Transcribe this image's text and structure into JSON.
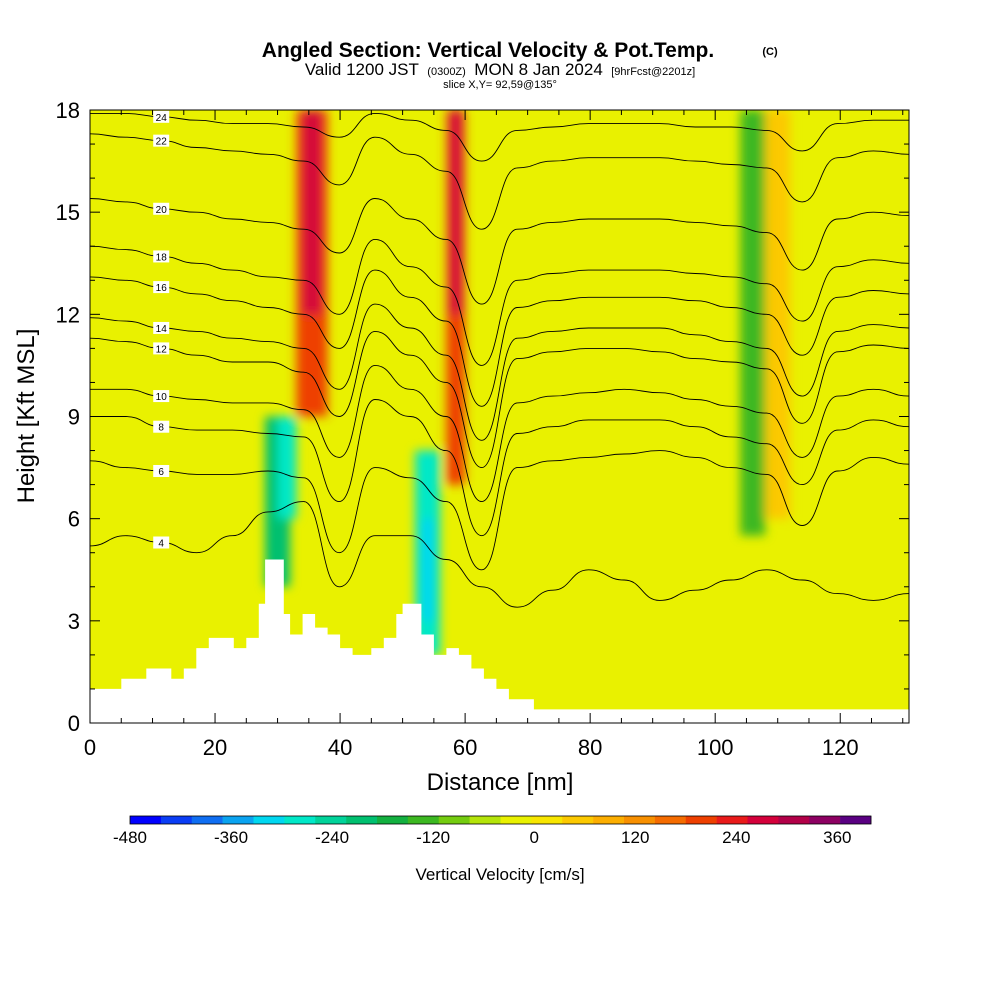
{
  "title": "Angled Section: Vertical Velocity & Pot.Temp.",
  "title_tag": "(C)",
  "subtitle_pre": "Valid 1200 JST",
  "subtitle_small1": "(0300Z)",
  "subtitle_mid": "MON 8 Jan 2024",
  "subtitle_small2": "[9hrFcst@2201z]",
  "slice_text": "slice X,Y= 92,59@135°",
  "chart_data": {
    "type": "heatmap",
    "title": "Angled Section: Vertical Velocity & Pot.Temp. (C)",
    "xlabel": "Distance [nm]",
    "ylabel": "Height [Kft MSL]",
    "xlim": [
      0,
      131
    ],
    "ylim": [
      0,
      18
    ],
    "x_ticks": [
      0,
      20,
      40,
      60,
      80,
      100,
      120
    ],
    "y_ticks": [
      0,
      3,
      6,
      9,
      12,
      15,
      18
    ],
    "colorbar": {
      "label": "Vertical Velocity [cm/s]",
      "min": -480,
      "max": 400,
      "step": 40,
      "tick_values": [
        -480,
        -360,
        -240,
        -120,
        0,
        120,
        240,
        360
      ],
      "colors": [
        "#0000ff",
        "#0a3df5",
        "#0f6ef2",
        "#0aa3f0",
        "#00d7f0",
        "#00e8c8",
        "#00d39a",
        "#00c070",
        "#13b040",
        "#3cb821",
        "#74cc10",
        "#b4e40a",
        "#e9f100",
        "#f8e600",
        "#fcc900",
        "#fcae00",
        "#f89000",
        "#f56c00",
        "#ee4000",
        "#e91a1a",
        "#d4003b",
        "#b20048",
        "#8d0062",
        "#5a0082"
      ]
    },
    "velocity_cells": [
      {
        "x": [
          28,
          32
        ],
        "y": [
          4,
          9
        ],
        "value": -200
      },
      {
        "x": [
          30,
          33
        ],
        "y": [
          6,
          9
        ],
        "value": -280
      },
      {
        "x": [
          33,
          38
        ],
        "y": [
          9,
          18
        ],
        "value": 240
      },
      {
        "x": [
          34,
          37
        ],
        "y": [
          12,
          18
        ],
        "value": 320
      },
      {
        "x": [
          52,
          56
        ],
        "y": [
          2,
          8
        ],
        "value": -250
      },
      {
        "x": [
          53,
          55
        ],
        "y": [
          3,
          6
        ],
        "value": -320
      },
      {
        "x": [
          57,
          60
        ],
        "y": [
          7,
          18
        ],
        "value": 240
      },
      {
        "x": [
          57.5,
          59.5
        ],
        "y": [
          12,
          18
        ],
        "value": 320
      },
      {
        "x": [
          104,
          108
        ],
        "y": [
          5.5,
          18
        ],
        "value": -120
      },
      {
        "x": [
          108,
          112
        ],
        "y": [
          6,
          18
        ],
        "value": 100
      }
    ],
    "terrain": [
      [
        0,
        1
      ],
      [
        5,
        1
      ],
      [
        5,
        1.3
      ],
      [
        9,
        1.3
      ],
      [
        9,
        1.6
      ],
      [
        13,
        1.6
      ],
      [
        13,
        1.3
      ],
      [
        15,
        1.3
      ],
      [
        15,
        1.6
      ],
      [
        17,
        1.6
      ],
      [
        17,
        2.2
      ],
      [
        19,
        2.2
      ],
      [
        19,
        2.5
      ],
      [
        23,
        2.5
      ],
      [
        23,
        2.2
      ],
      [
        25,
        2.2
      ],
      [
        25,
        2.5
      ],
      [
        27,
        2.5
      ],
      [
        27,
        3.5
      ],
      [
        28,
        3.5
      ],
      [
        28,
        4.8
      ],
      [
        31,
        4.8
      ],
      [
        31,
        3.2
      ],
      [
        32,
        3.2
      ],
      [
        32,
        2.6
      ],
      [
        34,
        2.6
      ],
      [
        34,
        3.2
      ],
      [
        36,
        3.2
      ],
      [
        36,
        2.8
      ],
      [
        38,
        2.8
      ],
      [
        38,
        2.6
      ],
      [
        40,
        2.6
      ],
      [
        40,
        2.2
      ],
      [
        42,
        2.2
      ],
      [
        42,
        2
      ],
      [
        45,
        2
      ],
      [
        45,
        2.2
      ],
      [
        47,
        2.2
      ],
      [
        47,
        2.5
      ],
      [
        49,
        2.5
      ],
      [
        49,
        3.2
      ],
      [
        50,
        3.2
      ],
      [
        50,
        3.5
      ],
      [
        53,
        3.5
      ],
      [
        53,
        2.6
      ],
      [
        55,
        2.6
      ],
      [
        55,
        2
      ],
      [
        57,
        2
      ],
      [
        57,
        2.2
      ],
      [
        59,
        2.2
      ],
      [
        59,
        2
      ],
      [
        61,
        2
      ],
      [
        61,
        1.6
      ],
      [
        63,
        1.6
      ],
      [
        63,
        1.3
      ],
      [
        65,
        1.3
      ],
      [
        65,
        1
      ],
      [
        67,
        1
      ],
      [
        67,
        0.7
      ],
      [
        71,
        0.7
      ],
      [
        71,
        0.4
      ],
      [
        131,
        0.4
      ]
    ],
    "theta_contours": [
      {
        "level": 4,
        "y": [
          5.2,
          5.5,
          5.3,
          5.0,
          5.5,
          6.2,
          6.5,
          4.0,
          5.5,
          5.5,
          4.8,
          4.0,
          3.4,
          3.9,
          4.5,
          4.2,
          3.6,
          3.9,
          4.2,
          4.5,
          4.2,
          3.8,
          3.6,
          3.8
        ]
      },
      {
        "level": 6,
        "y": [
          7.7,
          7.5,
          7.4,
          7.3,
          7.3,
          7.4,
          7.2,
          5.0,
          7.5,
          7.2,
          6.5,
          4.5,
          7.5,
          7.7,
          7.8,
          7.9,
          8.0,
          7.8,
          7.5,
          7.3,
          5.8,
          7.4,
          7.8,
          7.6
        ]
      },
      {
        "level": 8,
        "y": [
          9.0,
          9.0,
          8.7,
          8.6,
          8.6,
          8.5,
          8.4,
          6.5,
          9.5,
          9.0,
          8.0,
          5.5,
          8.5,
          8.7,
          8.9,
          8.9,
          8.9,
          8.7,
          8.4,
          8.2,
          7.0,
          8.6,
          8.9,
          8.7
        ]
      },
      {
        "level": 10,
        "y": [
          9.8,
          9.8,
          9.6,
          9.5,
          9.4,
          9.4,
          9.2,
          7.8,
          10.5,
          9.8,
          9.0,
          6.5,
          9.4,
          9.6,
          9.7,
          9.8,
          9.7,
          9.5,
          9.3,
          9.1,
          7.8,
          9.6,
          9.8,
          9.6
        ]
      },
      {
        "level": 12,
        "y": [
          11.3,
          11.2,
          11.0,
          10.8,
          10.6,
          10.6,
          10.3,
          9.0,
          11.5,
          10.8,
          10.0,
          7.5,
          10.7,
          10.9,
          11.0,
          11.0,
          10.9,
          10.7,
          10.6,
          10.4,
          8.8,
          10.9,
          11.1,
          11.0
        ]
      },
      {
        "level": 14,
        "y": [
          11.9,
          11.8,
          11.6,
          11.5,
          11.3,
          11.2,
          11.0,
          9.8,
          12.3,
          11.6,
          10.8,
          8.3,
          11.3,
          11.5,
          11.6,
          11.6,
          11.6,
          11.4,
          11.2,
          11.0,
          9.6,
          11.5,
          11.7,
          11.6
        ]
      },
      {
        "level": 16,
        "y": [
          13.1,
          13.0,
          12.8,
          12.6,
          12.4,
          12.2,
          12.0,
          11.0,
          13.3,
          12.5,
          11.8,
          9.3,
          12.2,
          12.4,
          12.5,
          12.5,
          12.5,
          12.4,
          12.2,
          12.0,
          10.8,
          12.5,
          12.7,
          12.6
        ]
      },
      {
        "level": 18,
        "y": [
          14.0,
          13.9,
          13.7,
          13.5,
          13.3,
          13.1,
          13.0,
          12.0,
          14.2,
          13.4,
          12.8,
          10.5,
          13.0,
          13.2,
          13.3,
          13.3,
          13.3,
          13.2,
          13.1,
          12.9,
          11.8,
          13.4,
          13.6,
          13.5
        ]
      },
      {
        "level": 20,
        "y": [
          15.4,
          15.3,
          15.1,
          15.0,
          14.8,
          14.7,
          14.5,
          13.8,
          15.4,
          14.8,
          14.2,
          12.3,
          14.5,
          14.7,
          14.8,
          14.8,
          14.8,
          14.7,
          14.6,
          14.4,
          13.3,
          14.8,
          15.0,
          14.9
        ]
      },
      {
        "level": 22,
        "y": [
          17.3,
          17.2,
          17.1,
          16.9,
          16.8,
          16.7,
          16.5,
          15.8,
          17.2,
          16.7,
          16.2,
          14.5,
          16.3,
          16.5,
          16.6,
          16.6,
          16.6,
          16.5,
          16.4,
          16.3,
          15.3,
          16.6,
          16.8,
          16.7
        ]
      },
      {
        "level": 24,
        "y": [
          17.9,
          17.9,
          17.8,
          17.7,
          17.6,
          17.6,
          17.5,
          17.2,
          17.9,
          17.7,
          17.4,
          16.5,
          17.4,
          17.5,
          17.6,
          17.6,
          17.6,
          17.5,
          17.5,
          17.4,
          16.8,
          17.6,
          17.7,
          17.7
        ]
      }
    ]
  }
}
